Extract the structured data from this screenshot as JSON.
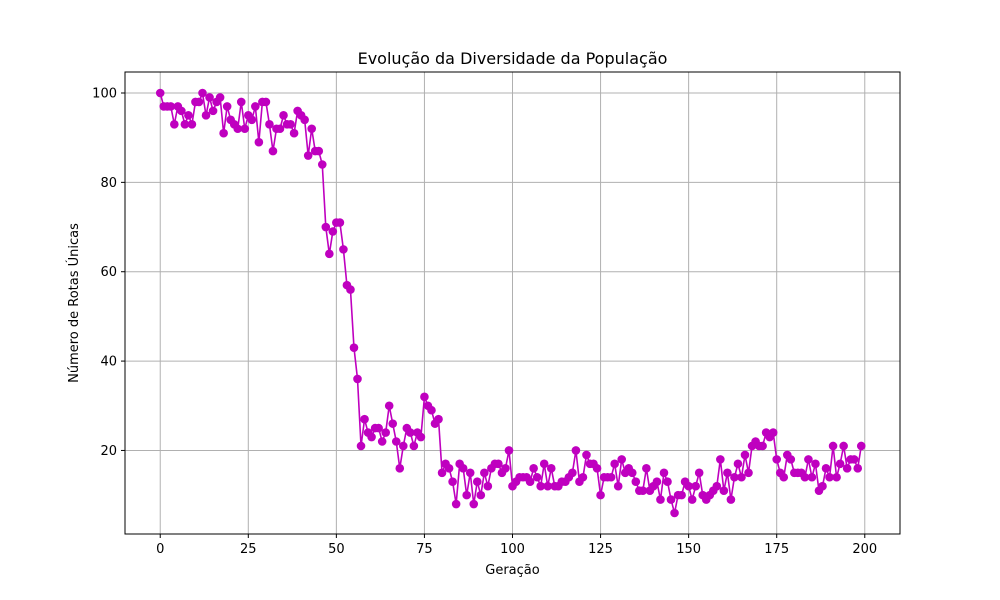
{
  "chart_data": {
    "type": "line",
    "title": "Evolução da Diversidade da População",
    "xlabel": "Geração",
    "ylabel": "Número de Rotas Únicas",
    "xlim": [
      -10,
      210
    ],
    "ylim": [
      1.3,
      104.7
    ],
    "xticks": [
      0,
      25,
      50,
      75,
      100,
      125,
      150,
      175,
      200
    ],
    "yticks": [
      20,
      40,
      60,
      80,
      100
    ],
    "grid": true,
    "marker": "circle",
    "series": [
      {
        "color": "#bf00bf",
        "x": [
          0,
          1,
          2,
          3,
          4,
          5,
          6,
          7,
          8,
          9,
          10,
          11,
          12,
          13,
          14,
          15,
          16,
          17,
          18,
          19,
          20,
          21,
          22,
          23,
          24,
          25,
          26,
          27,
          28,
          29,
          30,
          31,
          32,
          33,
          34,
          35,
          36,
          37,
          38,
          39,
          40,
          41,
          42,
          43,
          44,
          45,
          46,
          47,
          48,
          49,
          50,
          51,
          52,
          53,
          54,
          55,
          56,
          57,
          58,
          59,
          60,
          61,
          62,
          63,
          64,
          65,
          66,
          67,
          68,
          69,
          70,
          71,
          72,
          73,
          74,
          75,
          76,
          77,
          78,
          79,
          80,
          81,
          82,
          83,
          84,
          85,
          86,
          87,
          88,
          89,
          90,
          91,
          92,
          93,
          94,
          95,
          96,
          97,
          98,
          99,
          100,
          101,
          102,
          103,
          104,
          105,
          106,
          107,
          108,
          109,
          110,
          111,
          112,
          113,
          114,
          115,
          116,
          117,
          118,
          119,
          120,
          121,
          122,
          123,
          124,
          125,
          126,
          127,
          128,
          129,
          130,
          131,
          132,
          133,
          134,
          135,
          136,
          137,
          138,
          139,
          140,
          141,
          142,
          143,
          144,
          145,
          146,
          147,
          148,
          149,
          150,
          151,
          152,
          153,
          154,
          155,
          156,
          157,
          158,
          159,
          160,
          161,
          162,
          163,
          164,
          165,
          166,
          167,
          168,
          169,
          170,
          171,
          172,
          173,
          174,
          175,
          176,
          177,
          178,
          179,
          180,
          181,
          182,
          183,
          184,
          185,
          186,
          187,
          188,
          189,
          190,
          191,
          192,
          193,
          194,
          195,
          196,
          197,
          198,
          199
        ],
        "y": [
          100,
          97,
          97,
          97,
          93,
          97,
          96,
          93,
          95,
          93,
          98,
          98,
          100,
          95,
          99,
          96,
          98,
          99,
          91,
          97,
          94,
          93,
          92,
          98,
          92,
          95,
          94,
          97,
          89,
          98,
          98,
          93,
          87,
          92,
          92,
          95,
          93,
          93,
          91,
          96,
          95,
          94,
          86,
          92,
          87,
          87,
          84,
          70,
          64,
          69,
          71,
          71,
          65,
          57,
          56,
          43,
          36,
          21,
          27,
          24,
          23,
          25,
          25,
          22,
          24,
          30,
          26,
          22,
          16,
          21,
          25,
          24,
          21,
          24,
          23,
          32,
          30,
          29,
          26,
          27,
          15,
          17,
          16,
          13,
          8,
          17,
          16,
          10,
          15,
          8,
          13,
          10,
          15,
          12,
          16,
          17,
          17,
          15,
          16,
          20,
          12,
          13,
          14,
          14,
          14,
          13,
          16,
          14,
          12,
          17,
          12,
          16,
          12,
          12,
          13,
          13,
          14,
          15,
          20,
          13,
          14,
          19,
          17,
          17,
          16,
          10,
          14,
          14,
          14,
          17,
          12,
          18,
          15,
          16,
          15,
          13,
          11,
          11,
          16,
          11,
          12,
          13,
          9,
          15,
          13,
          9,
          6,
          10,
          10,
          13,
          12,
          9,
          12,
          15,
          10,
          9,
          10,
          11,
          12,
          18,
          11,
          15,
          9,
          14,
          17,
          14,
          19,
          15,
          21,
          22,
          21,
          21,
          24,
          23,
          24,
          18,
          15,
          14,
          19,
          18,
          15,
          15,
          15,
          14,
          18,
          14,
          17,
          11,
          12,
          16,
          14,
          21,
          14,
          17,
          21,
          16,
          18,
          18,
          16,
          21
        ]
      }
    ]
  }
}
